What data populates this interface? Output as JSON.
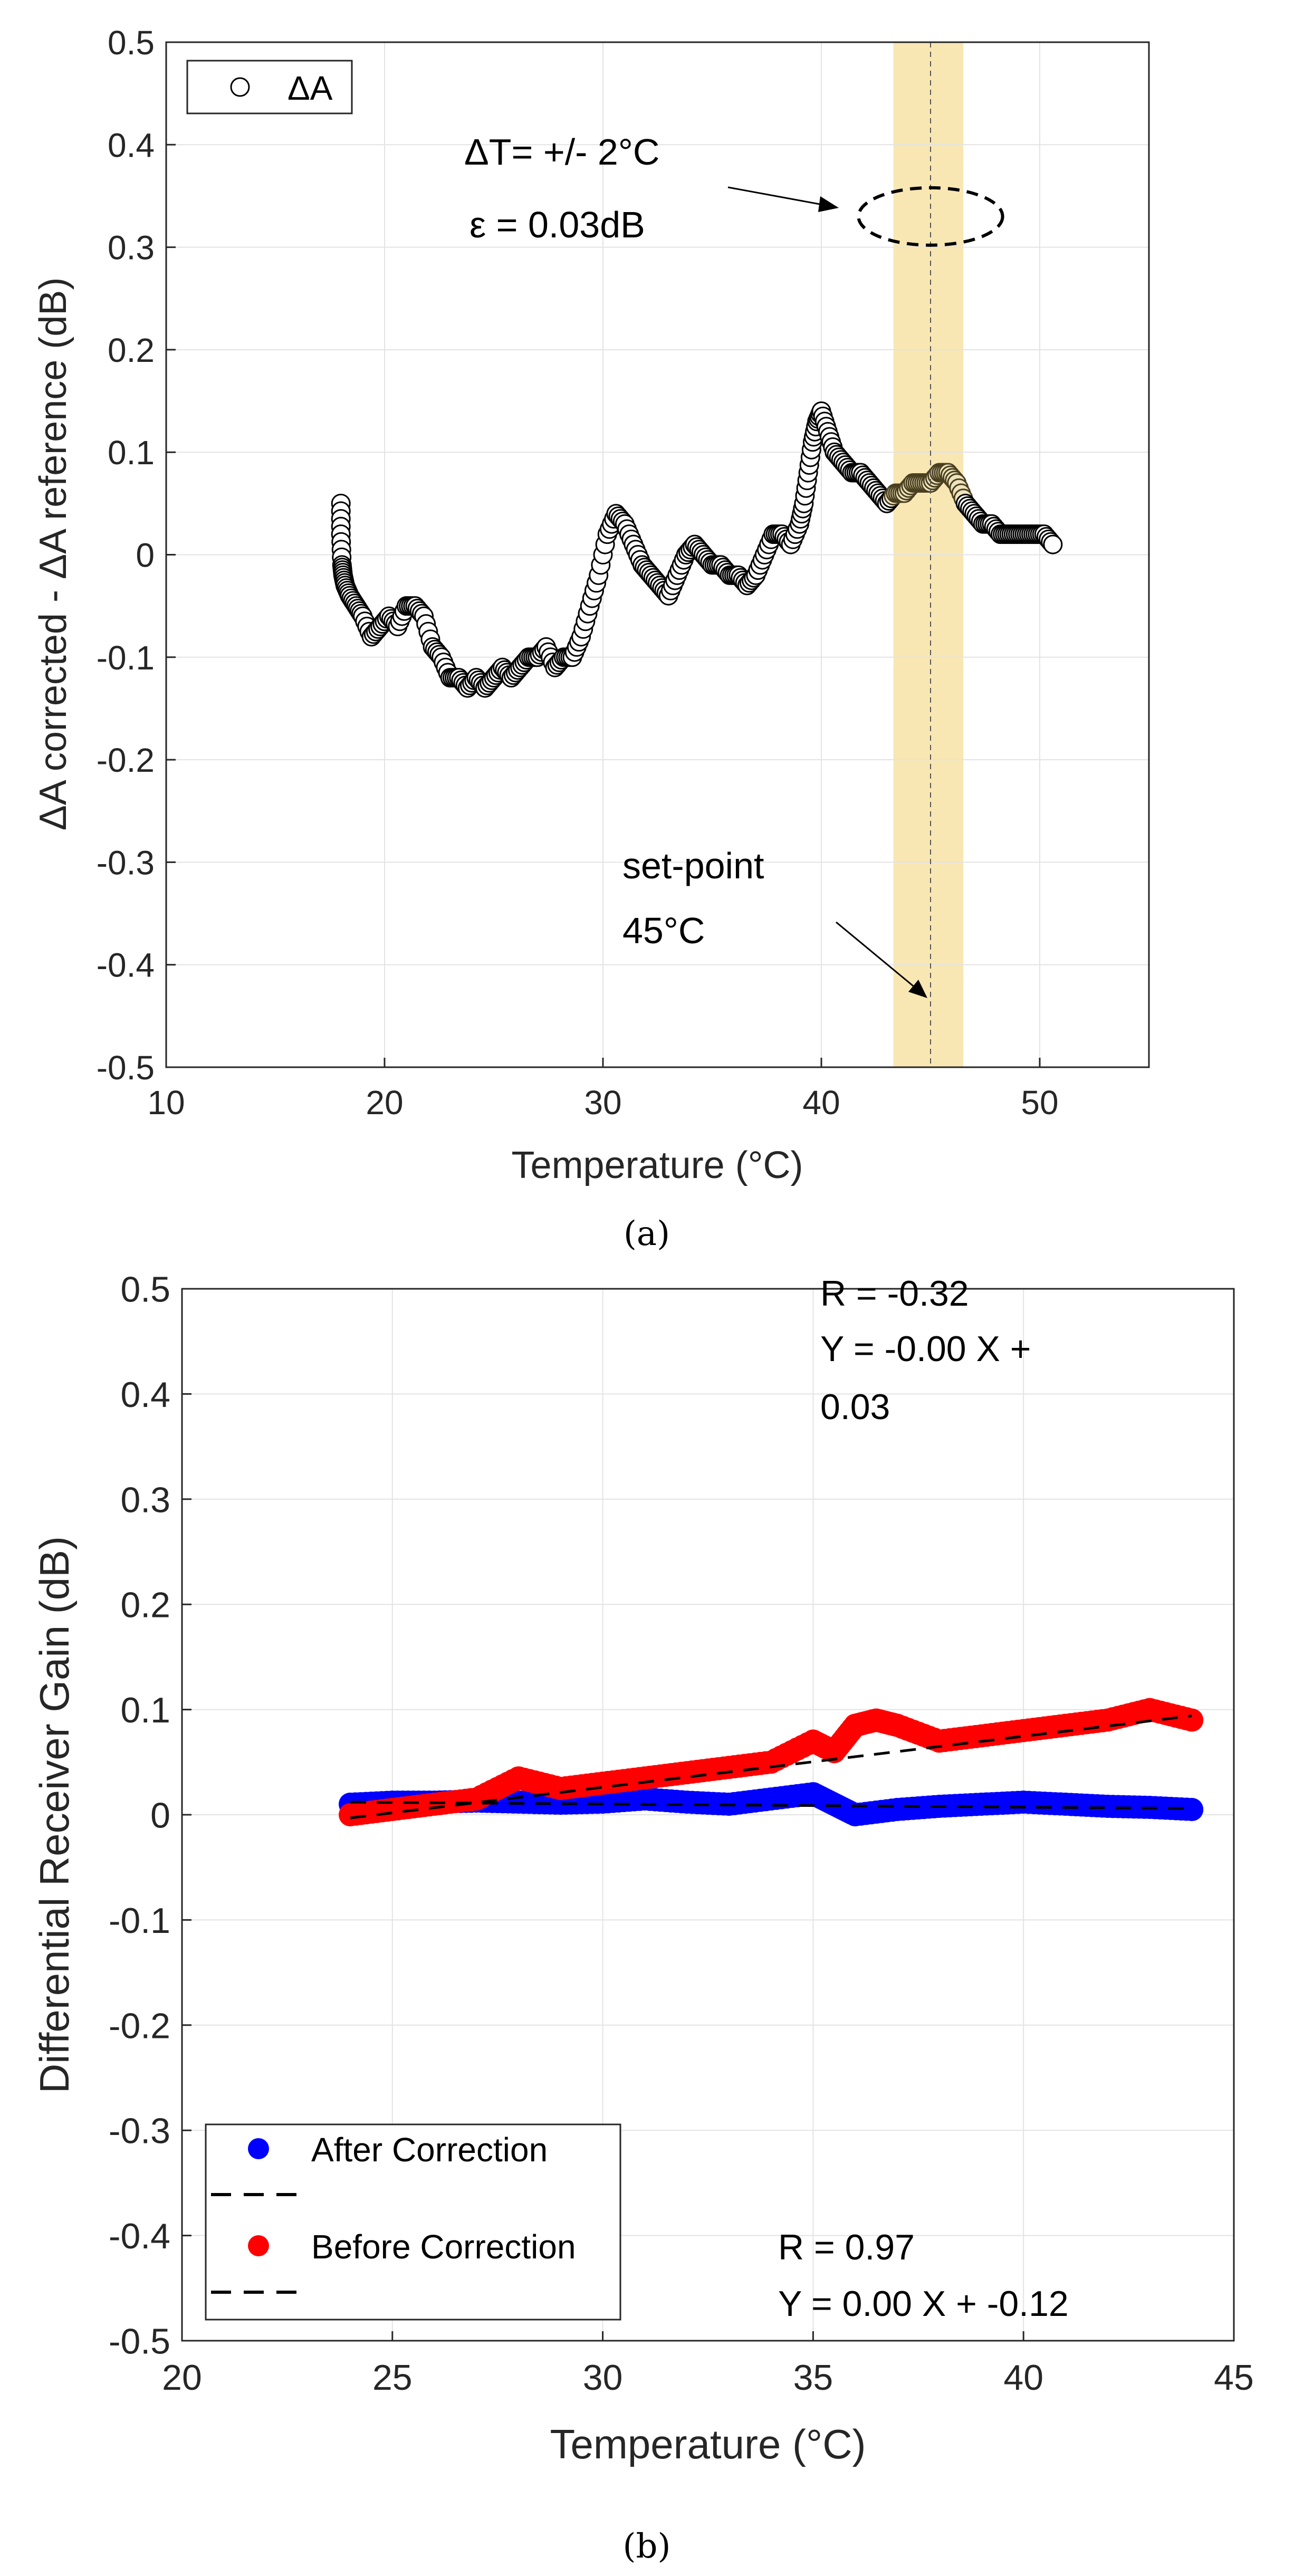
{
  "chart_data": [
    {
      "id": "a",
      "type": "scatter",
      "caption": "(a)",
      "xlabel": "Temperature (°C)",
      "ylabel": "ΔA corrected - ΔA reference (dB)",
      "xlim": [
        10,
        55
      ],
      "ylim": [
        -0.5,
        0.5
      ],
      "xticks": [
        "10",
        "20",
        "30",
        "40",
        "50"
      ],
      "yticks": [
        "-0.5",
        "-0.4",
        "-0.3",
        "-0.2",
        "-0.1",
        "0",
        "0.1",
        "0.2",
        "0.3",
        "0.4",
        "0.5"
      ],
      "grid": true,
      "legend": {
        "position": "top-left",
        "entries": [
          "ΔA"
        ]
      },
      "band": {
        "x": [
          43.3,
          46.5
        ],
        "color": "#f7e3a6"
      },
      "setpoint_x": 45,
      "annotations": {
        "delta_t": "ΔT= +/- 2°C",
        "epsilon": "ε = 0.03dB",
        "setpoint_line1": "set-point",
        "setpoint_line2": "45°C"
      },
      "ellipse": {
        "cx": 45,
        "cy": 0.33,
        "rx": 3.3,
        "ry": 0.028
      },
      "series": [
        {
          "name": "ΔA",
          "marker": "open-circle",
          "x": [
            18,
            18,
            18.05,
            18.1,
            18.2,
            18.4,
            18.7,
            19.0,
            19.4,
            19.8,
            20.2,
            20.6,
            21.0,
            21.4,
            21.8,
            22.2,
            22.6,
            23.0,
            23.4,
            23.8,
            24.2,
            24.6,
            25.0,
            25.4,
            25.8,
            26.2,
            26.6,
            27.0,
            27.4,
            27.8,
            28.2,
            28.6,
            29.0,
            29.4,
            29.8,
            30.2,
            30.6,
            31.0,
            31.4,
            31.8,
            32.2,
            32.6,
            33.0,
            33.4,
            33.8,
            34.2,
            34.6,
            35.0,
            35.4,
            35.8,
            36.2,
            36.6,
            37.0,
            37.4,
            37.8,
            38.2,
            38.6,
            39.0,
            39.2,
            39.4,
            39.6,
            39.8,
            40.0,
            40.3,
            40.6,
            41.0,
            41.4,
            41.8,
            42.2,
            42.6,
            43.0,
            43.4,
            43.8,
            44.2,
            44.6,
            45.0,
            45.4,
            45.8,
            46.2,
            46.6,
            47.0,
            47.4,
            47.8,
            48.2,
            48.6,
            49.0,
            49.4,
            49.8,
            50.2,
            50.6
          ],
          "y": [
            0.05,
            0.02,
            -0.01,
            -0.02,
            -0.03,
            -0.04,
            -0.05,
            -0.06,
            -0.08,
            -0.07,
            -0.06,
            -0.07,
            -0.05,
            -0.05,
            -0.06,
            -0.09,
            -0.1,
            -0.12,
            -0.12,
            -0.13,
            -0.12,
            -0.13,
            -0.12,
            -0.11,
            -0.12,
            -0.11,
            -0.1,
            -0.1,
            -0.09,
            -0.11,
            -0.1,
            -0.1,
            -0.08,
            -0.05,
            -0.02,
            0.02,
            0.04,
            0.03,
            0.01,
            -0.01,
            -0.02,
            -0.03,
            -0.04,
            -0.02,
            0.0,
            0.01,
            0.0,
            -0.01,
            -0.01,
            -0.02,
            -0.02,
            -0.03,
            -0.02,
            0.0,
            0.02,
            0.02,
            0.01,
            0.03,
            0.05,
            0.08,
            0.11,
            0.13,
            0.14,
            0.12,
            0.1,
            0.09,
            0.08,
            0.08,
            0.07,
            0.06,
            0.05,
            0.06,
            0.06,
            0.07,
            0.07,
            0.07,
            0.08,
            0.08,
            0.07,
            0.05,
            0.04,
            0.03,
            0.03,
            0.02,
            0.02,
            0.02,
            0.02,
            0.02,
            0.02,
            0.01
          ]
        }
      ]
    },
    {
      "id": "b",
      "type": "scatter",
      "caption": "(b)",
      "xlabel": "Temperature (°C)",
      "ylabel": "Differential Receiver Gain (dB)",
      "xlim": [
        20,
        45
      ],
      "ylim": [
        -0.5,
        0.5
      ],
      "xticks": [
        "20",
        "25",
        "30",
        "35",
        "40",
        "45"
      ],
      "yticks": [
        "-0.5",
        "-0.4",
        "-0.3",
        "-0.2",
        "-0.1",
        "0",
        "0.1",
        "0.2",
        "0.3",
        "0.4",
        "0.5"
      ],
      "grid": true,
      "legend": {
        "position": "bottom-left",
        "entries": [
          "After Correction",
          "",
          "Before Correction",
          ""
        ]
      },
      "annotations": {
        "top_r": "R = -0.32",
        "top_eq1": "Y = -0.00 X +",
        "top_eq2": "0.03",
        "bottom_r": "R = 0.97",
        "bottom_eq": "Y = 0.00 X + -0.12"
      },
      "series": [
        {
          "name": "After Correction",
          "color": "#0000ff",
          "x": [
            24,
            25,
            26,
            27,
            28,
            29,
            30,
            31,
            32,
            33,
            34,
            35,
            35.5,
            36,
            37,
            38,
            39,
            40,
            41,
            42,
            43,
            44
          ],
          "y": [
            0.01,
            0.012,
            0.012,
            0.013,
            0.012,
            0.011,
            0.012,
            0.015,
            0.012,
            0.01,
            0.015,
            0.02,
            0.01,
            0.0,
            0.005,
            0.008,
            0.01,
            0.012,
            0.01,
            0.008,
            0.007,
            0.005
          ]
        },
        {
          "name": "Before Correction",
          "color": "#ff0000",
          "x": [
            24,
            25,
            26,
            27,
            28,
            29,
            30,
            31,
            32,
            33,
            34,
            35,
            35.5,
            36,
            36.5,
            37,
            38,
            39,
            40,
            41,
            42,
            43,
            44
          ],
          "y": [
            0.0,
            0.005,
            0.01,
            0.015,
            0.035,
            0.025,
            0.03,
            0.035,
            0.04,
            0.045,
            0.05,
            0.07,
            0.06,
            0.085,
            0.09,
            0.085,
            0.07,
            0.075,
            0.08,
            0.085,
            0.09,
            0.1,
            0.09
          ]
        },
        {
          "name": "",
          "line": "dashed",
          "color": "#000000",
          "x": [
            24,
            44
          ],
          "y": [
            0.012,
            0.006
          ]
        },
        {
          "name": "",
          "line": "dashed",
          "color": "#000000",
          "x": [
            24,
            44
          ],
          "y": [
            -0.003,
            0.094
          ]
        }
      ]
    }
  ]
}
